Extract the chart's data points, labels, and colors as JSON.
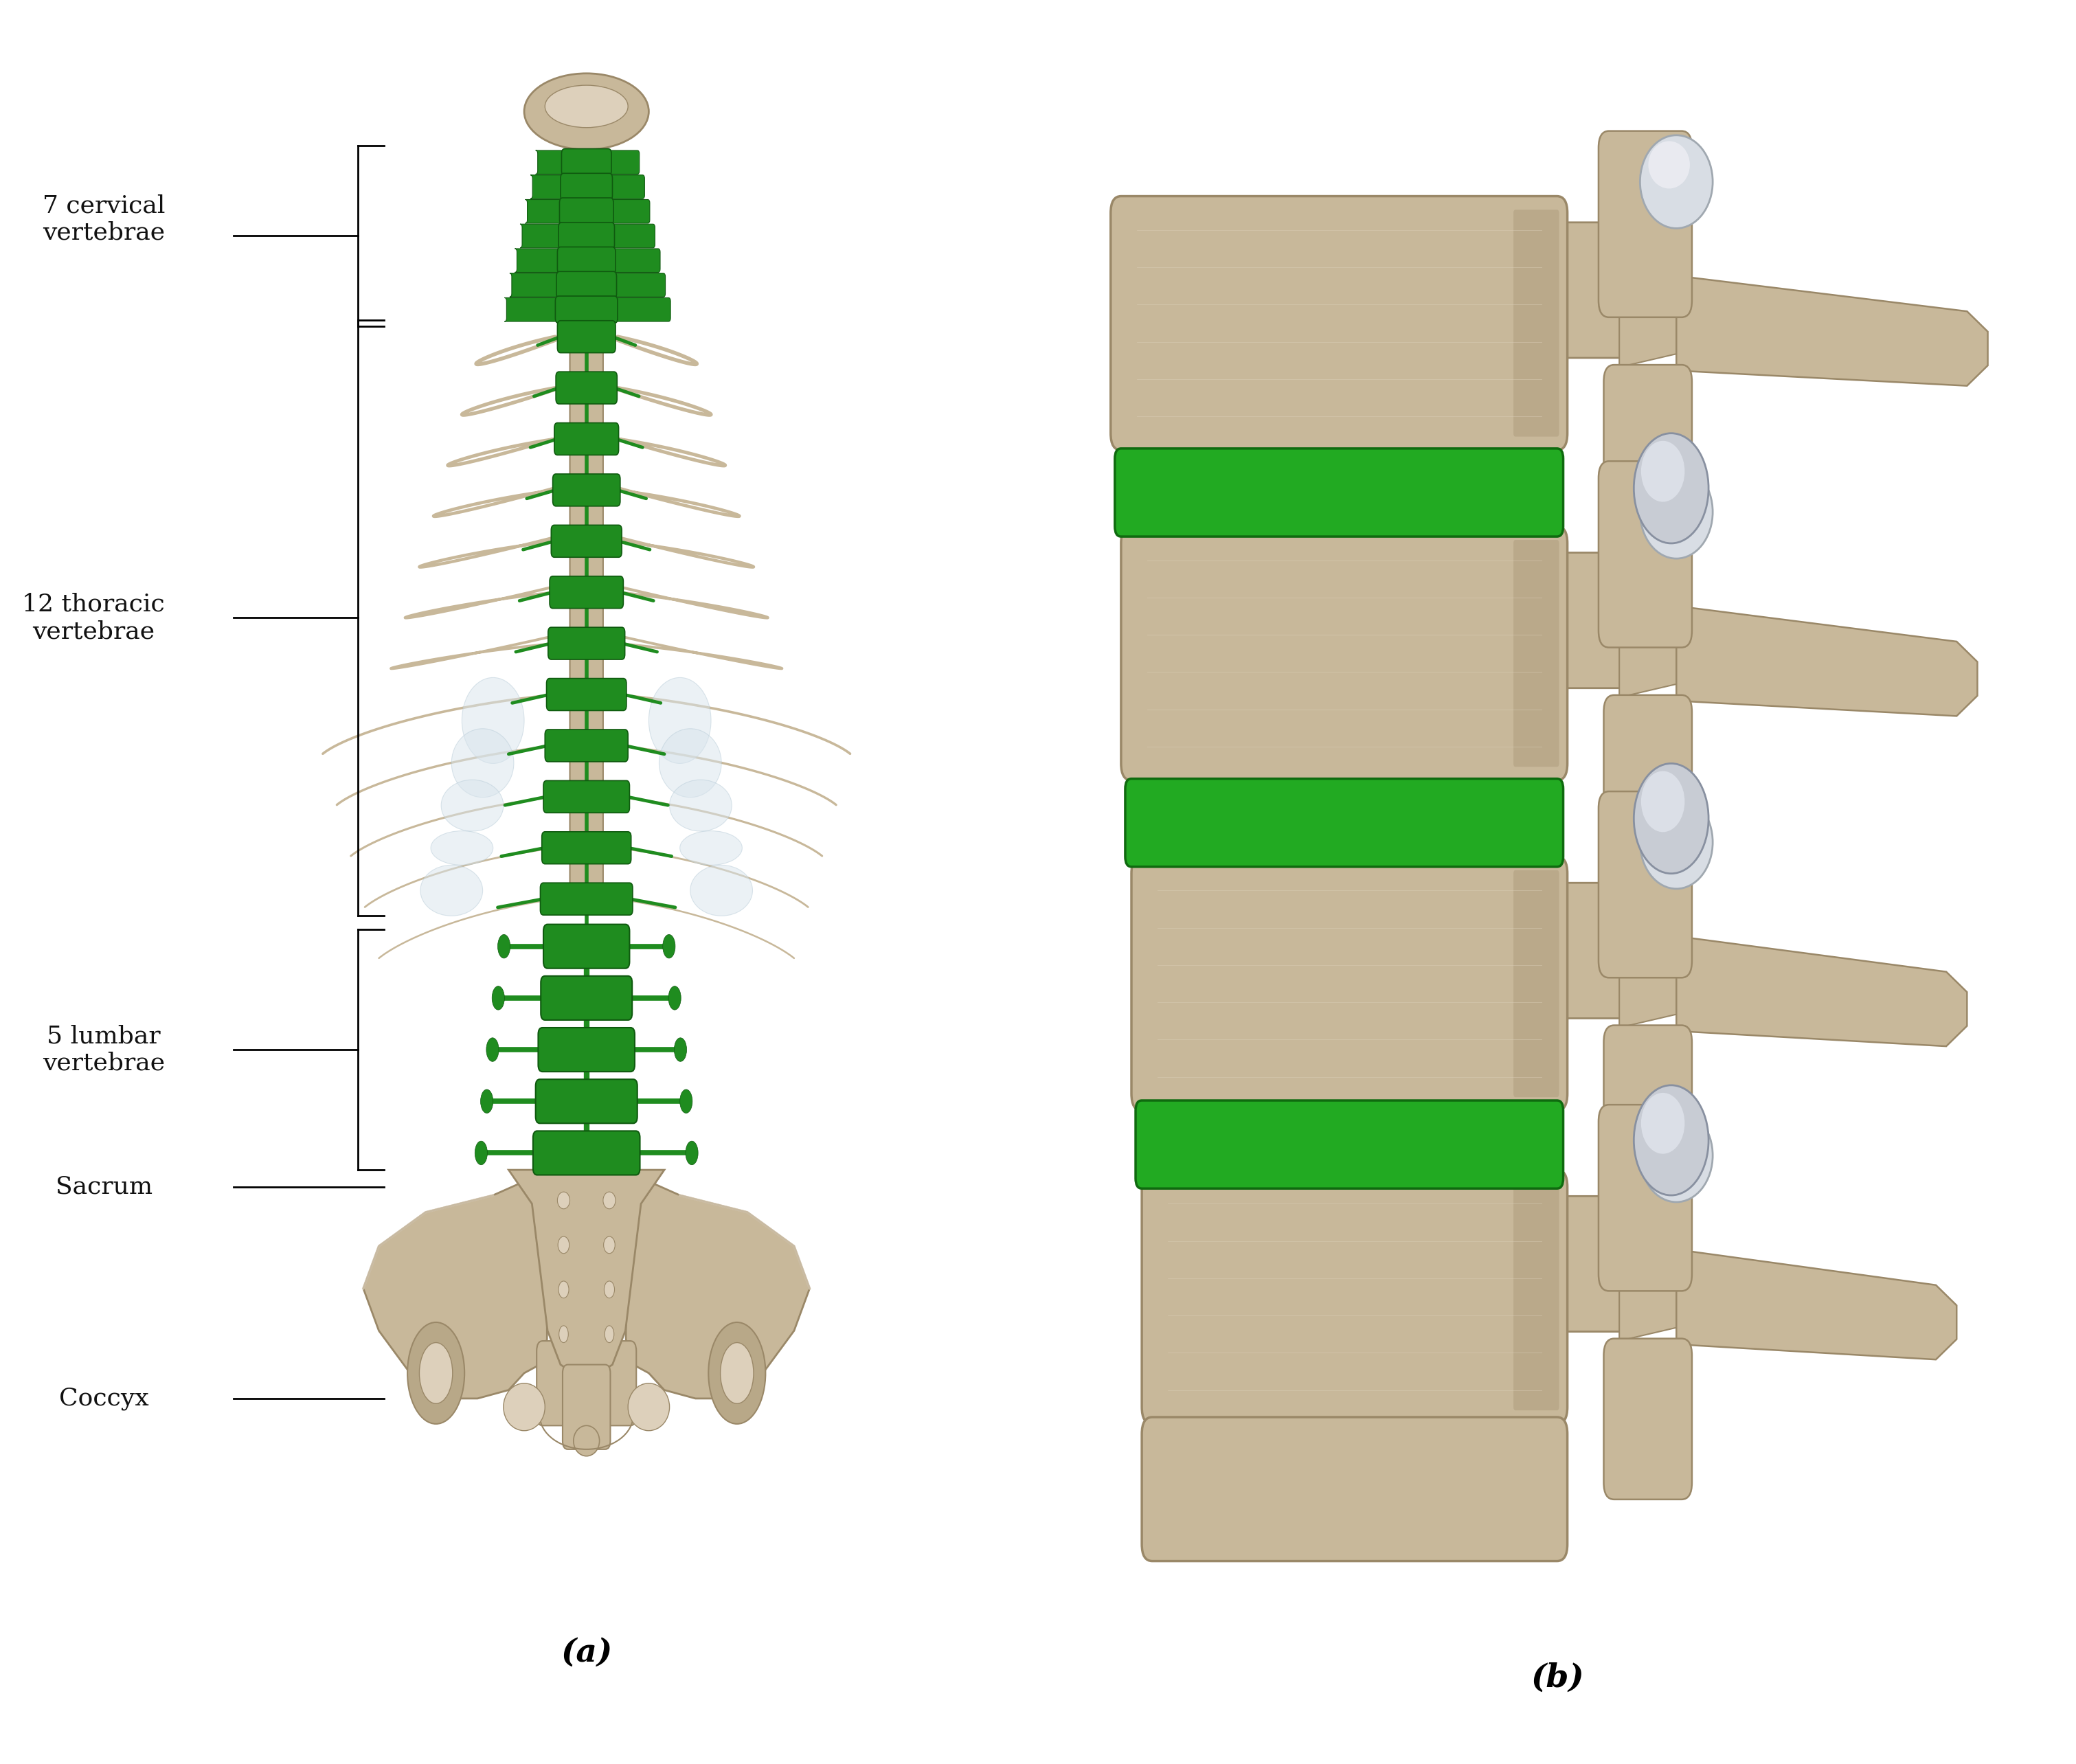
{
  "background_color": "#ffffff",
  "label_a": "(a)",
  "label_b": "(b)",
  "spine_green": "#1f8c1f",
  "bone_tan": "#c8b89a",
  "bone_dark": "#9a8868",
  "bone_light": "#ddd0bb",
  "bone_shadow": "#b0a080",
  "disc_green": "#22aa22",
  "text_color": "#111111",
  "label_fontsize": 26,
  "sublabel_fontsize": 34,
  "fig_width": 30.22,
  "fig_height": 25.68,
  "cervical_label": "7 cervical\nvertebrae",
  "thoracic_label": "12 thoracic\nvertebrae",
  "lumbar_label": "5 lumbar\nvertebrae",
  "sacrum_label": "Sacrum",
  "coccyx_label": "Coccyx"
}
